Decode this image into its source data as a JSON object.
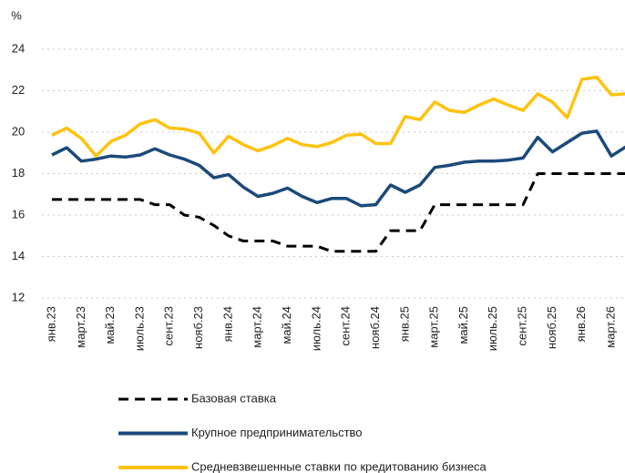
{
  "chart_data": {
    "type": "line",
    "ylabel": "%",
    "categories": [
      "янв.23",
      null,
      "март.23",
      null,
      "май.23",
      null,
      "июль.23",
      null,
      "сент.23",
      null,
      "нояб.23",
      null,
      "янв.24",
      null,
      "март.24",
      null,
      "май.24",
      null,
      "июль.24",
      null,
      "сент.24",
      null,
      "нояб.24",
      null,
      "янв.25",
      null,
      "март.25",
      null,
      "май.25",
      null,
      "июль.25",
      null,
      "сент.25",
      null,
      "нояб.25",
      null,
      "янв.26",
      null,
      "март.26",
      null
    ],
    "ylim": [
      12,
      24
    ],
    "yticks": [
      12,
      14,
      16,
      18,
      20,
      22,
      24
    ],
    "grid": true,
    "legend": "bottom",
    "series": [
      {
        "name": "Базовая ставка",
        "color": "#000000",
        "dash": true,
        "values": [
          16.75,
          16.75,
          16.75,
          16.75,
          16.75,
          16.75,
          16.75,
          16.5,
          16.5,
          16.0,
          15.9,
          15.5,
          15.0,
          14.75,
          14.75,
          14.75,
          14.5,
          14.5,
          14.5,
          14.25,
          14.25,
          14.25,
          14.25,
          15.25,
          15.25,
          15.25,
          16.5,
          16.5,
          16.5,
          16.5,
          16.5,
          16.5,
          16.5,
          18,
          18,
          18,
          18,
          18,
          18,
          18
        ]
      },
      {
        "name": "Крупное предпринимательство",
        "color": "#1b4a7a",
        "dash": false,
        "values": [
          18.9,
          19.25,
          18.6,
          18.7,
          18.85,
          18.8,
          18.9,
          19.2,
          18.9,
          18.7,
          18.4,
          17.8,
          17.95,
          17.35,
          16.9,
          17.05,
          17.3,
          16.9,
          16.6,
          16.8,
          16.8,
          16.45,
          16.5,
          17.45,
          17.1,
          17.45,
          18.3,
          18.4,
          18.55,
          18.6,
          18.6,
          18.65,
          18.75,
          19.75,
          19.05,
          19.5,
          19.95,
          20.05,
          18.85,
          19.3
        ]
      },
      {
        "name": "Средневзвешенные ставки по кредитованию бизнеса",
        "color": "#ffc20e",
        "dash": false,
        "values": [
          19.85,
          20.2,
          19.7,
          18.85,
          19.55,
          19.85,
          20.4,
          20.6,
          20.2,
          20.15,
          19.95,
          19.0,
          19.8,
          19.4,
          19.1,
          19.35,
          19.7,
          19.4,
          19.3,
          19.5,
          19.85,
          19.9,
          19.45,
          19.45,
          20.75,
          20.6,
          21.45,
          21.05,
          20.95,
          21.3,
          21.6,
          21.3,
          21.05,
          21.85,
          21.45,
          20.7,
          22.55,
          22.65,
          21.8,
          21.85
        ]
      }
    ]
  }
}
